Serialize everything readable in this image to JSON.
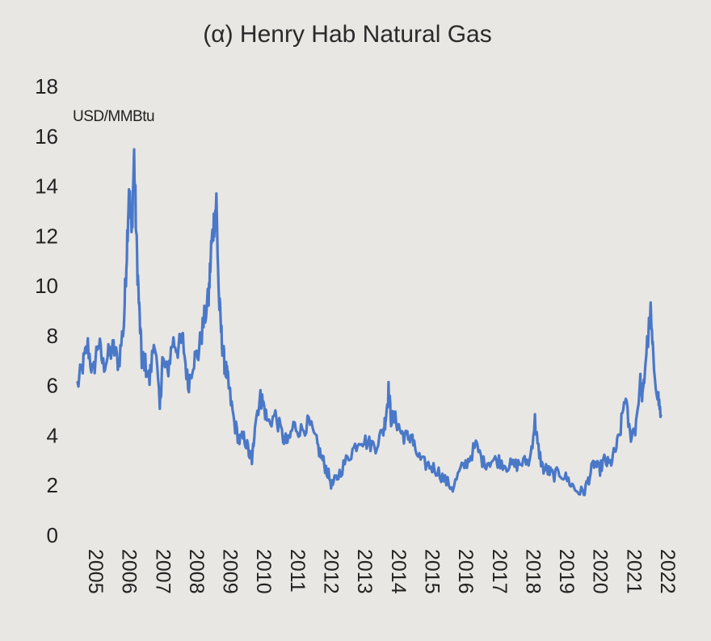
{
  "chart_data": {
    "type": "line",
    "title": "(α) Henry Hab Natural Gas",
    "unit_label": "USD/MMBtu",
    "xlabel": "",
    "ylabel": "",
    "ylim": [
      0,
      18
    ],
    "y_ticks": [
      "0",
      "2",
      "4",
      "6",
      "8",
      "10",
      "12",
      "14",
      "16",
      "18"
    ],
    "x_tick_labels": [
      "2005",
      "2006",
      "2007",
      "2008",
      "2009",
      "2010",
      "2011",
      "2012",
      "2013",
      "2014",
      "2015",
      "2016",
      "2017",
      "2018",
      "2019",
      "2020",
      "2021",
      "2022"
    ],
    "xlim": [
      "2004-01",
      "2022-12"
    ],
    "grid": false,
    "legend": "none",
    "line_color": "#4a78c8",
    "series": [
      {
        "x": [
          "2004-01",
          "2004-03",
          "2004-05",
          "2004-07",
          "2004-09",
          "2004-11",
          "2005-01",
          "2005-03",
          "2005-05",
          "2005-07",
          "2005-08",
          "2005-09",
          "2005-10",
          "2005-11",
          "2005-12",
          "2006-01",
          "2006-02",
          "2006-03",
          "2006-05",
          "2006-07",
          "2006-09",
          "2006-10",
          "2006-12",
          "2007-02",
          "2007-04",
          "2007-06",
          "2007-08",
          "2007-10",
          "2007-12",
          "2008-02",
          "2008-04",
          "2008-05",
          "2008-06",
          "2008-07",
          "2008-08",
          "2008-09",
          "2008-10",
          "2008-11",
          "2008-12",
          "2009-02",
          "2009-04",
          "2009-06",
          "2009-08",
          "2009-09",
          "2009-10",
          "2009-12",
          "2010-01",
          "2010-03",
          "2010-06",
          "2010-09",
          "2010-11",
          "2011-01",
          "2011-04",
          "2011-07",
          "2011-10",
          "2011-12",
          "2012-02",
          "2012-04",
          "2012-06",
          "2012-09",
          "2012-12",
          "2013-03",
          "2013-06",
          "2013-09",
          "2013-12",
          "2014-01",
          "2014-02",
          "2014-03",
          "2014-05",
          "2014-07",
          "2014-09",
          "2014-11",
          "2014-12",
          "2015-03",
          "2015-06",
          "2015-09",
          "2015-12",
          "2016-03",
          "2016-06",
          "2016-09",
          "2016-12",
          "2017-03",
          "2017-06",
          "2017-09",
          "2017-12",
          "2018-03",
          "2018-06",
          "2018-09",
          "2018-11",
          "2018-12",
          "2019-02",
          "2019-04",
          "2019-06",
          "2019-09",
          "2019-12",
          "2020-03",
          "2020-06",
          "2020-08",
          "2020-10",
          "2020-12",
          "2021-02",
          "2021-04",
          "2021-06",
          "2021-08",
          "2021-10",
          "2021-12",
          "2022-02",
          "2022-04",
          "2022-05",
          "2022-06",
          "2022-08",
          "2022-09",
          "2022-11",
          "2022-12"
        ],
        "y": [
          6.0,
          6.8,
          7.6,
          6.4,
          7.8,
          6.8,
          7.2,
          7.5,
          6.9,
          8.5,
          11.0,
          14.0,
          12.0,
          15.2,
          11.5,
          9.0,
          7.0,
          7.0,
          6.2,
          8.0,
          5.0,
          7.0,
          6.5,
          7.8,
          7.5,
          7.8,
          6.0,
          7.0,
          7.3,
          8.5,
          9.5,
          11.5,
          12.5,
          13.4,
          9.5,
          8.0,
          7.0,
          6.5,
          5.8,
          4.5,
          3.8,
          3.9,
          3.2,
          3.0,
          4.5,
          5.5,
          5.4,
          4.5,
          4.8,
          3.9,
          3.7,
          4.4,
          4.2,
          4.5,
          3.7,
          3.1,
          2.6,
          2.0,
          2.3,
          2.9,
          3.4,
          3.9,
          3.7,
          3.6,
          4.2,
          4.8,
          5.8,
          4.7,
          4.6,
          4.1,
          3.9,
          4.0,
          3.5,
          2.9,
          2.8,
          2.6,
          2.2,
          1.9,
          2.6,
          3.0,
          3.6,
          2.9,
          3.0,
          3.0,
          2.8,
          2.8,
          2.9,
          3.0,
          4.6,
          3.6,
          2.7,
          2.6,
          2.4,
          2.5,
          2.2,
          1.8,
          1.7,
          2.3,
          2.9,
          2.6,
          3.0,
          2.8,
          3.3,
          4.0,
          5.6,
          4.0,
          4.3,
          6.1,
          5.5,
          7.0,
          8.9,
          7.0,
          5.5,
          4.8
        ]
      }
    ]
  }
}
